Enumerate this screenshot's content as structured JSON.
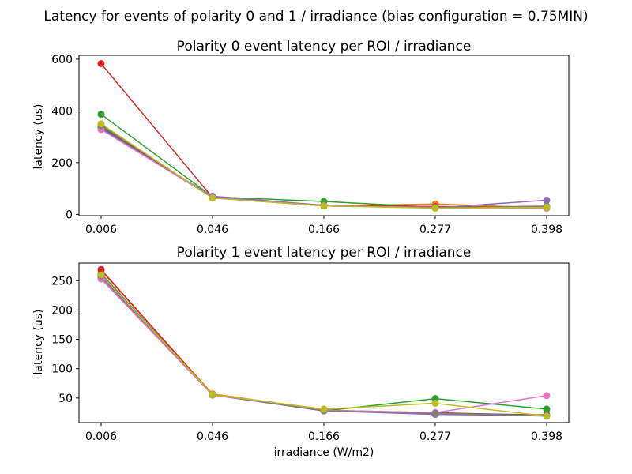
{
  "figure": {
    "suptitle": "Latency for events of polarity 0 and 1 / irradiance (bias configuration = 0.75MIN)"
  },
  "chart_data": [
    {
      "type": "line",
      "title": "Polarity 0 event latency per ROI / irradiance",
      "xlabel": "",
      "ylabel": "latency (us)",
      "categories": [
        "0.006",
        "0.046",
        "0.166",
        "0.277",
        "0.398"
      ],
      "ylim": [
        -5,
        615
      ],
      "yticks": [
        0,
        200,
        400,
        600
      ],
      "grid": false,
      "series": [
        {
          "color": "#1f77b4",
          "values": [
            335,
            67,
            33,
            27,
            30
          ]
        },
        {
          "color": "#ff7f0e",
          "values": [
            345,
            64,
            33,
            40,
            25
          ]
        },
        {
          "color": "#2ca02c",
          "values": [
            387,
            68,
            50,
            27,
            28
          ]
        },
        {
          "color": "#d62728",
          "values": [
            583,
            65,
            35,
            30,
            28
          ]
        },
        {
          "color": "#9467bd",
          "values": [
            330,
            70,
            35,
            25,
            55
          ]
        },
        {
          "color": "#8c564b",
          "values": [
            340,
            64,
            33,
            27,
            25
          ]
        },
        {
          "color": "#e377c2",
          "values": [
            328,
            65,
            33,
            27,
            24
          ]
        },
        {
          "color": "#7f7f7f",
          "values": [
            345,
            64,
            33,
            26,
            32
          ]
        },
        {
          "color": "#bcbd22",
          "values": [
            350,
            63,
            33,
            24,
            27
          ]
        }
      ]
    },
    {
      "type": "line",
      "title": "Polarity 1 event latency per ROI / irradiance",
      "xlabel": "irradiance (W/m2)",
      "ylabel": "latency (us)",
      "categories": [
        "0.006",
        "0.046",
        "0.166",
        "0.277",
        "0.398"
      ],
      "ylim": [
        8,
        280
      ],
      "yticks": [
        50,
        100,
        150,
        200,
        250
      ],
      "grid": false,
      "series": [
        {
          "color": "#1f77b4",
          "values": [
            262,
            56,
            29,
            24,
            21
          ]
        },
        {
          "color": "#ff7f0e",
          "values": [
            267,
            57,
            30,
            23,
            20
          ]
        },
        {
          "color": "#2ca02c",
          "values": [
            258,
            56,
            28,
            49,
            31
          ]
        },
        {
          "color": "#d62728",
          "values": [
            269,
            56,
            29,
            23,
            20
          ]
        },
        {
          "color": "#9467bd",
          "values": [
            255,
            55,
            28,
            22,
            20
          ]
        },
        {
          "color": "#8c564b",
          "values": [
            259,
            56,
            29,
            25,
            20
          ]
        },
        {
          "color": "#e377c2",
          "values": [
            253,
            55,
            29,
            25,
            54
          ]
        },
        {
          "color": "#7f7f7f",
          "values": [
            258,
            56,
            28,
            24,
            19
          ]
        },
        {
          "color": "#bcbd22",
          "values": [
            260,
            56,
            31,
            41,
            19
          ]
        }
      ]
    }
  ]
}
